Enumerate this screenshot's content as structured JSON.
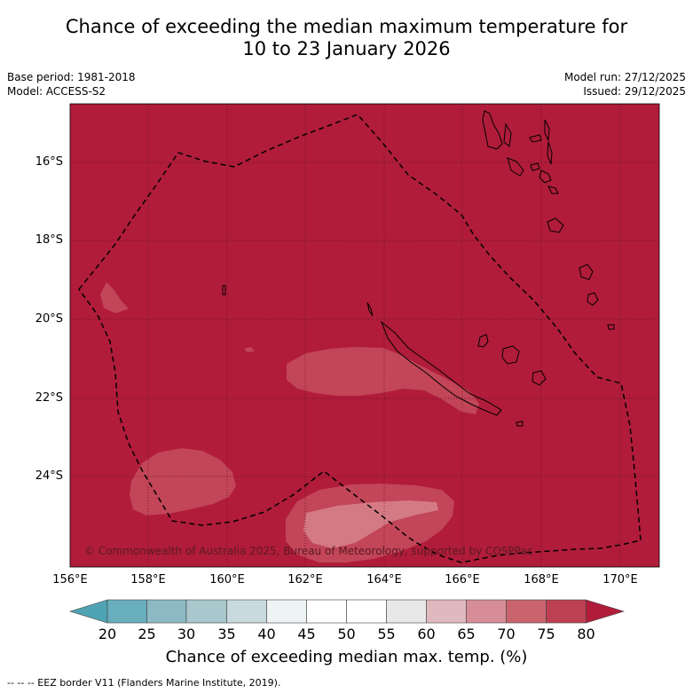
{
  "title": {
    "line1": "Chance of exceeding the median maximum temperature for",
    "line2": "10 to 23 January 2026"
  },
  "meta": {
    "base_period": "Base period: 1981-2018",
    "model": "Model: ACCESS-S2",
    "model_run": "Model run: 27/12/2025",
    "issued": "Issued: 29/12/2025"
  },
  "map": {
    "region": "New Caledonia",
    "background_color": "#b01c3a",
    "latitude_labels": [
      "16°S",
      "18°S",
      "20°S",
      "22°S",
      "24°S"
    ],
    "longitude_labels": [
      "156°E",
      "158°E",
      "160°E",
      "162°E",
      "164°E",
      "166°E",
      "168°E",
      "170°E"
    ],
    "copyright": "© Commonwealth of Australia 2025, Bureau of Meteorology, supported by COSPPac"
  },
  "colorbar": {
    "title": "Chance of exceeding median max. temp. (%)",
    "ticks": [
      "20",
      "25",
      "30",
      "35",
      "40",
      "45",
      "50",
      "55",
      "60",
      "65",
      "70",
      "75",
      "80"
    ],
    "colors": [
      "#4fa3b3",
      "#68aebc",
      "#8cb9c3",
      "#a9c8cd",
      "#c8dadd",
      "#eef3f4",
      "#ffffff",
      "#ffffff",
      "#e8e8e8",
      "#e0b9bf",
      "#d78d97",
      "#c9646f",
      "#bd3f52",
      "#b01c3a"
    ]
  },
  "footnote": "--  --  -- EEZ border V11 (Flanders Marine Institute, 2019)."
}
